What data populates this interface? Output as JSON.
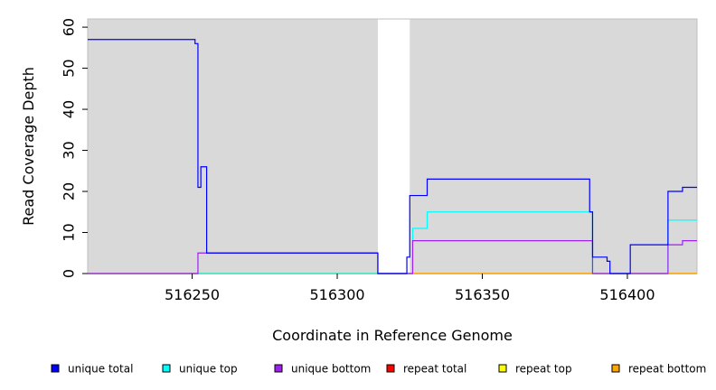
{
  "chart_data": {
    "type": "line",
    "step": true,
    "xlabel": "Coordinate in Reference Genome",
    "ylabel": "Read Coverage Depth",
    "xlim": [
      516214,
      516424
    ],
    "ylim": [
      0,
      62
    ],
    "xticks": [
      516250,
      516300,
      516350,
      516400
    ],
    "yticks": [
      0,
      10,
      20,
      30,
      40,
      50,
      60
    ],
    "grid": false,
    "background": "#d9d9d9",
    "gap_region": [
      516314,
      516325
    ],
    "legend_position": "bottom",
    "series": [
      {
        "name": "unique total",
        "color": "#0000ff",
        "x": [
          516214,
          516251,
          516252,
          516253,
          516255,
          516314,
          516324,
          516325,
          516331,
          516387,
          516388,
          516393,
          516394,
          516401,
          516414,
          516419,
          516424
        ],
        "y": [
          57,
          56,
          21,
          26,
          5,
          0,
          4,
          19,
          23,
          15,
          4,
          3,
          0,
          7,
          20,
          21,
          21
        ]
      },
      {
        "name": "unique top",
        "color": "#00ffff",
        "x": [
          516214,
          516255,
          516314,
          516326,
          516331,
          516387,
          516388,
          516414,
          516424
        ],
        "y": [
          0,
          0,
          0,
          11,
          15,
          15,
          0,
          13,
          13
        ]
      },
      {
        "name": "unique bottom",
        "color": "#a020f0",
        "x": [
          516214,
          516252,
          516255,
          516314,
          516326,
          516387,
          516388,
          516414,
          516419,
          516424
        ],
        "y": [
          0,
          5,
          5,
          0,
          8,
          8,
          0,
          7,
          8,
          8
        ]
      },
      {
        "name": "repeat total",
        "color": "#ff0000",
        "x": [
          516214,
          516424
        ],
        "y": [
          0,
          0
        ]
      },
      {
        "name": "repeat top",
        "color": "#ffff00",
        "x": [
          516214,
          516424
        ],
        "y": [
          0,
          0
        ]
      },
      {
        "name": "repeat bottom",
        "color": "#ffa500",
        "x": [
          516214,
          516424
        ],
        "y": [
          0,
          0
        ]
      }
    ]
  }
}
